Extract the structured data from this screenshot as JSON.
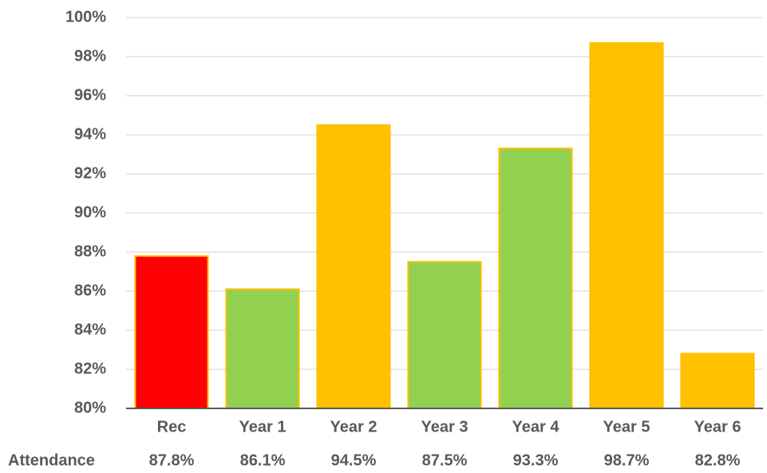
{
  "chart_data": {
    "type": "bar",
    "categories": [
      "Rec",
      "Year 1",
      "Year 2",
      "Year 3",
      "Year 4",
      "Year 5",
      "Year 6"
    ],
    "values": [
      87.8,
      86.1,
      94.5,
      87.5,
      93.3,
      98.7,
      82.8
    ],
    "value_labels": [
      "87.8%",
      "86.1%",
      "94.5%",
      "87.5%",
      "93.3%",
      "98.7%",
      "82.8%"
    ],
    "bar_colors": [
      "#ff0000",
      "#92d050",
      "#ffc000",
      "#92d050",
      "#92d050",
      "#ffc000",
      "#ffc000"
    ],
    "bar_outline_color": "#ffc000",
    "ylim": [
      80,
      100
    ],
    "yticks": [
      80,
      82,
      84,
      86,
      88,
      90,
      92,
      94,
      96,
      98,
      100
    ],
    "ytick_labels": [
      "80%",
      "82%",
      "84%",
      "86%",
      "88%",
      "90%",
      "92%",
      "94%",
      "96%",
      "98%",
      "100%"
    ],
    "grid": true,
    "grid_color": "#d9d9d9",
    "axis_color": "#595959",
    "table_row_label": "Attendance",
    "title": "",
    "xlabel": "",
    "ylabel": ""
  }
}
